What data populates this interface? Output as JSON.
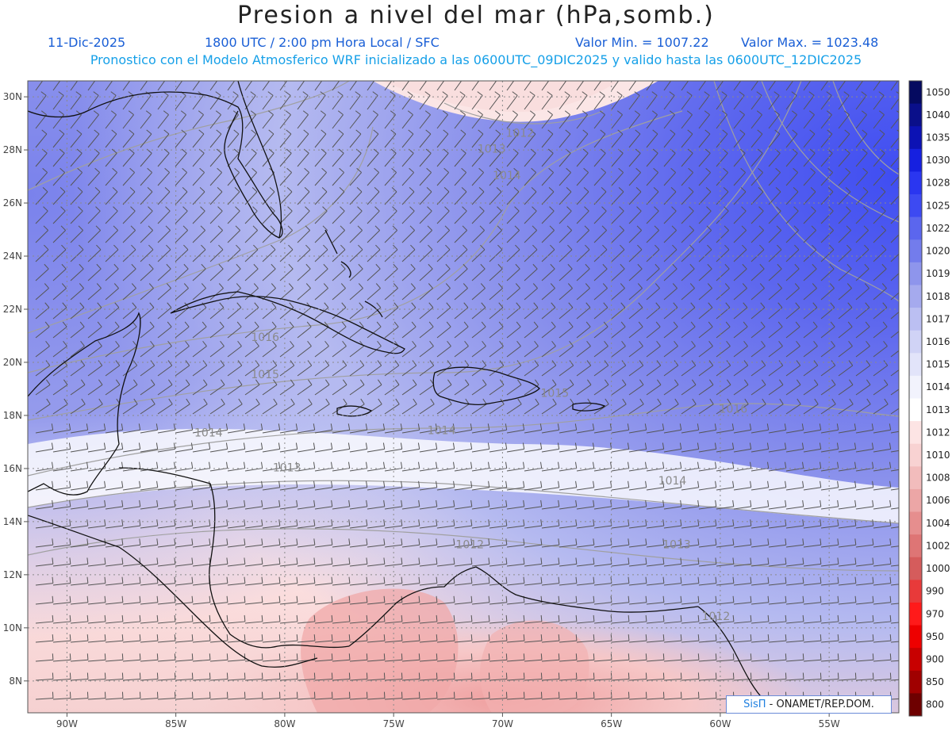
{
  "header": {
    "title": "Presion a nivel del mar (hPa,somb.)",
    "date": "11-Dic-2025",
    "time": "1800 UTC / 2:00 pm Hora Local / SFC",
    "valmin": "Valor Min. = 1007.22",
    "valmax": "Valor Max. = 1023.48",
    "model_line": "Pronostico con el Modelo Atmosferico WRF inicializado a las 0600UTC_09DIC2025 y valido hasta las  0600UTC_12DIC2025"
  },
  "axes": {
    "lat_labels": [
      "30N",
      "28N",
      "26N",
      "24N",
      "22N",
      "20N",
      "18N",
      "16N",
      "14N",
      "12N",
      "10N",
      "8N"
    ],
    "lat_values": [
      30,
      28,
      26,
      24,
      22,
      20,
      18,
      16,
      14,
      12,
      10,
      8
    ],
    "lon_labels": [
      "90W",
      "85W",
      "80W",
      "75W",
      "70W",
      "65W",
      "60W",
      "55W"
    ],
    "lon_values": [
      -90,
      -85,
      -80,
      -75,
      -70,
      -65,
      -60,
      -55
    ],
    "lat_range": [
      6.8,
      30.6
    ],
    "lon_range": [
      -91.8,
      -51.8
    ]
  },
  "colorbar": {
    "levels": [
      "1050",
      "1040",
      "1035",
      "1030",
      "1028",
      "1025",
      "1022",
      "1020",
      "1019",
      "1018",
      "1017",
      "1016",
      "1015",
      "1014",
      "1013",
      "1012",
      "1010",
      "1008",
      "1006",
      "1004",
      "1002",
      "1000",
      "990",
      "970",
      "950",
      "900",
      "850",
      "800"
    ],
    "colors": [
      "#050a60",
      "#0a0f8a",
      "#0c12b4",
      "#1620e0",
      "#2a36f0",
      "#3d4af2",
      "#5b66ee",
      "#737cec",
      "#8e95ec",
      "#a5aaee",
      "#bbbff2",
      "#d0d3f6",
      "#e2e4fa",
      "#f2f3fd",
      "#ffffff",
      "#fde4e4",
      "#f8d2d2",
      "#f2bcbc",
      "#eca6a6",
      "#e68e8e",
      "#de7575",
      "#d55c5c",
      "#e83a3a",
      "#ff1a1a",
      "#ee0000",
      "#c80000",
      "#a00000",
      "#6e0000"
    ]
  },
  "isobar_labels": [
    {
      "text": "1012",
      "lon": -69.2,
      "lat": 28.5
    },
    {
      "text": "1013",
      "lon": -70.5,
      "lat": 27.9
    },
    {
      "text": "1014",
      "lon": -69.8,
      "lat": 26.9
    },
    {
      "text": "1016",
      "lon": -80.9,
      "lat": 20.8
    },
    {
      "text": "1015",
      "lon": -80.9,
      "lat": 19.4
    },
    {
      "text": "1014",
      "lon": -83.5,
      "lat": 17.2
    },
    {
      "text": "1014",
      "lon": -72.8,
      "lat": 17.3
    },
    {
      "text": "1015",
      "lon": -67.6,
      "lat": 18.7
    },
    {
      "text": "1016",
      "lon": -59.4,
      "lat": 18.1
    },
    {
      "text": "1013",
      "lon": -79.9,
      "lat": 15.9
    },
    {
      "text": "1014",
      "lon": -62.2,
      "lat": 15.4
    },
    {
      "text": "1012",
      "lon": -71.5,
      "lat": 13.0
    },
    {
      "text": "1013",
      "lon": -62.0,
      "lat": 13.0
    },
    {
      "text": "1012",
      "lon": -60.2,
      "lat": 10.3
    }
  ],
  "credit": {
    "brand": "SisΠ",
    "text": " - ONAMET/REP.DOM."
  }
}
